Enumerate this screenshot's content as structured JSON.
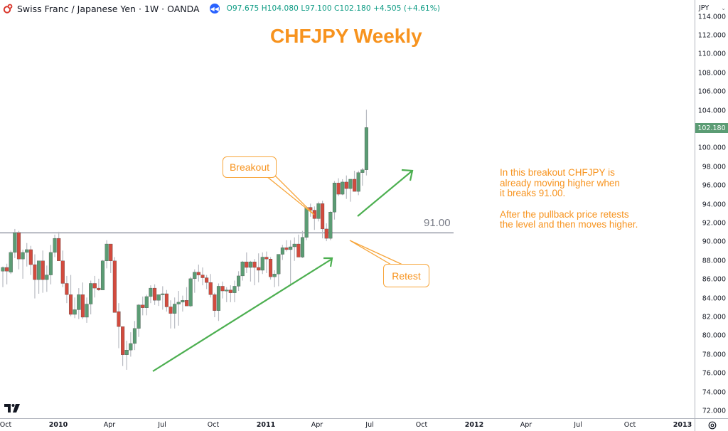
{
  "legend": {
    "symbol_icon": "chf-jpy-flag-icon",
    "title": "Swiss Franc / Japanese Yen · 1W · OANDA",
    "replay_icon": "replay-icon",
    "ohlc": "O97.675 H104.080 L97.100 C102.180 +4.505 (+4.61%)"
  },
  "price_scale": {
    "currency": "JPY",
    "ticks": [
      "114.000",
      "112.000",
      "110.000",
      "108.000",
      "106.000",
      "104.000",
      "100.000",
      "98.000",
      "96.000",
      "94.000",
      "92.000",
      "90.000",
      "88.000",
      "86.000",
      "84.000",
      "82.000",
      "80.000",
      "78.000",
      "76.000",
      "74.000",
      "72.000"
    ],
    "current_price": "102.180",
    "current_color": "#5b9c74"
  },
  "time_axis": {
    "labels": [
      {
        "text": "Oct",
        "x": 8,
        "bold": false
      },
      {
        "text": "2010",
        "x": 82,
        "bold": true
      },
      {
        "text": "Apr",
        "x": 154,
        "bold": false
      },
      {
        "text": "Jul",
        "x": 228,
        "bold": false
      },
      {
        "text": "Oct",
        "x": 300,
        "bold": false
      },
      {
        "text": "2011",
        "x": 374,
        "bold": true
      },
      {
        "text": "Apr",
        "x": 446,
        "bold": false
      },
      {
        "text": "Jul",
        "x": 520,
        "bold": false
      },
      {
        "text": "Oct",
        "x": 593,
        "bold": false
      },
      {
        "text": "2012",
        "x": 667,
        "bold": true
      },
      {
        "text": "Apr",
        "x": 740,
        "bold": false
      },
      {
        "text": "Jul",
        "x": 813,
        "bold": false
      },
      {
        "text": "Oct",
        "x": 886,
        "bold": false
      },
      {
        "text": "2013",
        "x": 960,
        "bold": true
      }
    ]
  },
  "annotations": {
    "title": "CHFJPY Weekly",
    "note_line1": "In this breakout CHFJPY is",
    "note_line2": "already moving higher when",
    "note_line3": "it breaks 91.00.",
    "note_line4": "After the pullback price retests",
    "note_line5": "the level and then moves higher.",
    "breakout_label": "Breakout",
    "retest_label": "Retest",
    "level_label": "91.00",
    "accent_color": "#f7931e",
    "trend_color": "#4caf50"
  },
  "chart_data": {
    "type": "candlestick",
    "title": "CHFJPY Weekly",
    "symbol": "Swiss Franc / Japanese Yen",
    "timeframe": "1W",
    "source": "OANDA",
    "ylabel": "JPY",
    "ylim": [
      72,
      114
    ],
    "x_ticks": [
      "Oct",
      "2010",
      "Apr",
      "Jul",
      "Oct",
      "2011",
      "Apr",
      "Jul",
      "Oct",
      "2012",
      "Apr",
      "Jul",
      "Oct",
      "2013"
    ],
    "horizontal_level": 91.0,
    "last": {
      "open": 97.675,
      "high": 104.08,
      "low": 97.1,
      "close": 102.18,
      "change": 4.505,
      "change_pct": 4.61
    },
    "candles": [
      [
        86.9,
        87.4,
        85.2,
        87.3
      ],
      [
        87.3,
        87.7,
        85.5,
        86.9
      ],
      [
        86.8,
        89.1,
        86.6,
        88.9
      ],
      [
        88.9,
        91.4,
        88.3,
        91.0
      ],
      [
        91.0,
        91.2,
        87.1,
        88.2
      ],
      [
        88.2,
        89.2,
        86.1,
        88.9
      ],
      [
        88.9,
        89.9,
        87.4,
        89.2
      ],
      [
        89.2,
        89.6,
        86.5,
        87.6
      ],
      [
        87.6,
        88.7,
        84.0,
        86.0
      ],
      [
        86.0,
        88.0,
        84.5,
        88.0
      ],
      [
        88.0,
        89.1,
        84.6,
        86.0
      ],
      [
        86.0,
        87.5,
        84.7,
        86.5
      ],
      [
        86.5,
        89.7,
        85.5,
        88.9
      ],
      [
        88.9,
        90.8,
        88.4,
        90.4
      ],
      [
        90.4,
        91.1,
        88.5,
        88.0
      ],
      [
        88.0,
        89.1,
        85.2,
        85.6
      ],
      [
        85.6,
        86.4,
        83.5,
        84.4
      ],
      [
        84.4,
        86.5,
        82.1,
        82.3
      ],
      [
        82.3,
        84.1,
        81.9,
        82.8
      ],
      [
        82.8,
        85.1,
        81.8,
        84.4
      ],
      [
        84.4,
        85.7,
        81.8,
        82.0
      ],
      [
        82.0,
        84.1,
        81.4,
        83.4
      ],
      [
        83.4,
        85.9,
        82.3,
        85.6
      ],
      [
        85.6,
        86.4,
        84.1,
        85.1
      ],
      [
        85.1,
        86.1,
        84.8,
        84.9
      ],
      [
        84.9,
        88.1,
        84.9,
        88.0
      ],
      [
        88.0,
        90.2,
        87.2,
        89.8
      ],
      [
        89.8,
        88.3,
        86.7,
        88.0
      ],
      [
        88.0,
        88.4,
        82.8,
        82.5
      ],
      [
        82.6,
        83.5,
        78.7,
        81.0
      ],
      [
        81.0,
        80.2,
        76.8,
        78.0
      ],
      [
        78.0,
        79.5,
        76.4,
        78.5
      ],
      [
        78.5,
        80.4,
        77.8,
        79.2
      ],
      [
        79.2,
        81.6,
        78.5,
        80.8
      ],
      [
        80.8,
        83.4,
        79.9,
        83.3
      ],
      [
        83.3,
        84.2,
        82.2,
        83.0
      ],
      [
        83.0,
        84.4,
        82.2,
        84.2
      ],
      [
        84.2,
        85.4,
        83.5,
        85.1
      ],
      [
        85.1,
        85.5,
        83.3,
        83.8
      ],
      [
        83.8,
        84.4,
        83.2,
        84.4
      ],
      [
        84.4,
        85.3,
        82.8,
        84.5
      ],
      [
        84.5,
        84.9,
        82.6,
        83.1
      ],
      [
        83.1,
        83.8,
        80.8,
        82.4
      ],
      [
        82.4,
        84.1,
        80.8,
        83.4
      ],
      [
        83.4,
        84.8,
        81.1,
        83.6
      ],
      [
        83.6,
        84.3,
        82.6,
        83.8
      ],
      [
        83.8,
        85.2,
        83.3,
        83.2
      ],
      [
        83.2,
        86.3,
        83.1,
        86.1
      ],
      [
        86.1,
        87.1,
        84.6,
        86.8
      ],
      [
        86.8,
        87.6,
        85.8,
        86.5
      ],
      [
        86.5,
        87.3,
        85.4,
        86.2
      ],
      [
        86.2,
        86.5,
        85.0,
        85.7
      ],
      [
        85.7,
        86.6,
        84.1,
        84.4
      ],
      [
        84.4,
        84.6,
        82.0,
        82.7
      ],
      [
        82.7,
        85.6,
        81.6,
        85.3
      ],
      [
        85.3,
        85.8,
        84.0,
        84.8
      ],
      [
        84.8,
        85.2,
        83.6,
        84.9
      ],
      [
        84.9,
        85.4,
        83.6,
        84.6
      ],
      [
        84.6,
        85.9,
        83.6,
        85.3
      ],
      [
        85.3,
        86.9,
        84.8,
        86.4
      ],
      [
        86.4,
        88.0,
        85.9,
        87.9
      ],
      [
        87.9,
        88.9,
        86.7,
        87.3
      ],
      [
        87.3,
        88.0,
        85.8,
        87.9
      ],
      [
        87.9,
        88.2,
        85.4,
        87.3
      ],
      [
        87.3,
        88.8,
        85.7,
        87.0
      ],
      [
        87.0,
        88.9,
        86.6,
        88.4
      ],
      [
        88.4,
        89.0,
        86.7,
        88.2
      ],
      [
        88.2,
        88.4,
        86.0,
        86.3
      ],
      [
        86.3,
        87.0,
        85.2,
        86.6
      ],
      [
        86.6,
        88.7,
        85.3,
        88.7
      ],
      [
        88.7,
        89.7,
        88.1,
        89.4
      ],
      [
        89.4,
        90.2,
        89.0,
        89.2
      ],
      [
        89.2,
        90.2,
        85.4,
        89.5
      ],
      [
        89.5,
        90.5,
        88.0,
        89.8
      ],
      [
        89.8,
        90.8,
        88.4,
        88.4
      ],
      [
        88.4,
        91.2,
        88.3,
        90.5
      ],
      [
        90.5,
        93.8,
        90.2,
        93.7
      ],
      [
        93.7,
        94.1,
        92.7,
        93.4
      ],
      [
        93.4,
        93.8,
        91.3,
        92.5
      ],
      [
        92.5,
        94.3,
        92.2,
        94.1
      ],
      [
        94.1,
        94.4,
        90.4,
        91.4
      ],
      [
        91.4,
        92.0,
        90.1,
        90.4
      ],
      [
        90.4,
        93.3,
        90.2,
        93.2
      ],
      [
        93.2,
        96.5,
        92.4,
        96.3
      ],
      [
        96.3,
        96.8,
        94.9,
        95.1
      ],
      [
        95.1,
        96.7,
        95.0,
        96.4
      ],
      [
        96.4,
        97.1,
        94.6,
        95.7
      ],
      [
        95.7,
        96.5,
        94.3,
        96.7
      ],
      [
        96.7,
        97.6,
        95.4,
        95.4
      ],
      [
        95.4,
        97.6,
        95.0,
        97.4
      ],
      [
        97.4,
        97.9,
        96.0,
        97.7
      ],
      [
        97.7,
        104.1,
        97.1,
        102.2
      ]
    ],
    "candle_x_start": 4,
    "candle_x_step": 5.62,
    "up_color": "#5b9c74",
    "down_color": "#d24b3e"
  }
}
